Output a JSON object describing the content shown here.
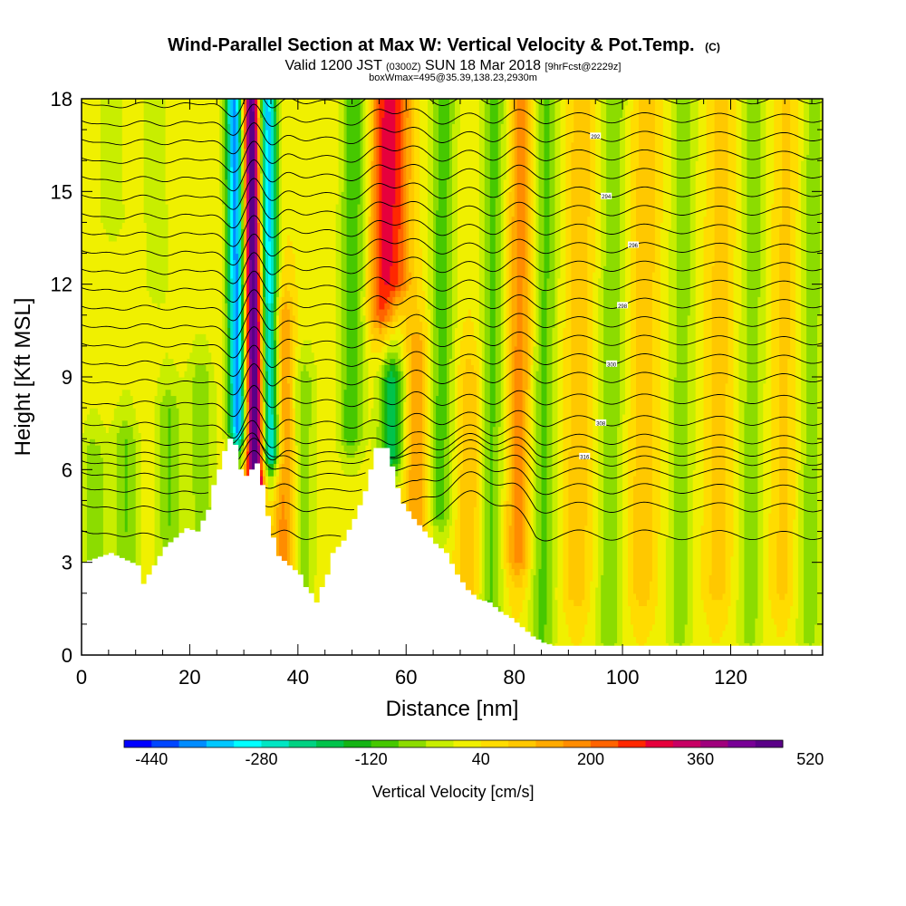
{
  "chart_data": {
    "type": "heatmap",
    "title": "Wind-Parallel Section at Max W: Vertical Velocity & Pot.Temp.",
    "title_mark": "(C)",
    "subtitle_main": "Valid 1200 JST",
    "subtitle_utc": "(0300Z)",
    "subtitle_date": "SUN 18 Mar 2018",
    "subtitle_fcst": "[9hrFcst@2229z]",
    "subtitle2": "boxWmax=495@35.39,138.23,2930m",
    "xlabel": "Distance [nm]",
    "ylabel": "Height [Kft MSL]",
    "xlim": [
      0,
      137
    ],
    "ylim": [
      0,
      18
    ],
    "xticks": [
      "0",
      "20",
      "40",
      "60",
      "80",
      "100",
      "120"
    ],
    "yticks": [
      "0",
      "3",
      "6",
      "9",
      "12",
      "15",
      "18"
    ],
    "colorbar": {
      "label": "Vertical Velocity [cm/s]",
      "min": -480,
      "step": 40,
      "tick_labels": [
        "-440",
        "-280",
        "-120",
        "40",
        "200",
        "360",
        "520"
      ],
      "colors": [
        "#0000ff",
        "#0046ff",
        "#008cff",
        "#00c8ff",
        "#00ffff",
        "#00e6c3",
        "#00d282",
        "#00c34b",
        "#14b414",
        "#46c800",
        "#8cdc00",
        "#c8ee00",
        "#f0f000",
        "#ffdc00",
        "#ffc800",
        "#ffaa00",
        "#ff8c00",
        "#ff6400",
        "#ff2800",
        "#e6003c",
        "#c80064",
        "#a0007d",
        "#780096",
        "#5a0087"
      ]
    },
    "terrain_kft": [
      [
        0,
        3.0
      ],
      [
        5,
        3.3
      ],
      [
        10,
        2.9
      ],
      [
        11,
        2.3
      ],
      [
        13,
        2.9
      ],
      [
        15,
        3.5
      ],
      [
        17,
        3.8
      ],
      [
        19,
        4.1
      ],
      [
        21,
        4.0
      ],
      [
        23,
        4.7
      ],
      [
        24,
        5.5
      ],
      [
        25,
        6.0
      ],
      [
        26,
        6.6
      ],
      [
        27,
        7.0
      ],
      [
        28,
        6.8
      ],
      [
        29,
        6.0
      ],
      [
        30,
        5.8
      ],
      [
        31,
        6.0
      ],
      [
        32,
        6.2
      ],
      [
        33,
        5.5
      ],
      [
        34,
        4.5
      ],
      [
        35,
        3.8
      ],
      [
        36,
        3.2
      ],
      [
        38,
        2.9
      ],
      [
        40,
        2.6
      ],
      [
        41,
        2.2
      ],
      [
        42,
        2.0
      ],
      [
        43,
        1.7
      ],
      [
        44,
        2.2
      ],
      [
        45,
        2.6
      ],
      [
        46,
        3.3
      ],
      [
        48,
        3.7
      ],
      [
        50,
        4.4
      ],
      [
        52,
        5.3
      ],
      [
        54,
        6.7
      ],
      [
        56,
        6.7
      ],
      [
        57,
        6.1
      ],
      [
        58,
        5.4
      ],
      [
        59,
        4.9
      ],
      [
        61,
        4.4
      ],
      [
        63,
        4.0
      ],
      [
        65,
        3.6
      ],
      [
        67,
        3.3
      ],
      [
        69,
        2.6
      ],
      [
        71,
        2.1
      ],
      [
        73,
        1.8
      ],
      [
        75,
        1.7
      ],
      [
        77,
        1.4
      ],
      [
        79,
        1.2
      ],
      [
        81,
        0.9
      ],
      [
        83,
        0.6
      ],
      [
        85,
        0.4
      ],
      [
        87,
        0.3
      ],
      [
        90,
        0.3
      ],
      [
        137,
        0.3
      ]
    ],
    "w_features": [
      {
        "x": 28.8,
        "w": -420,
        "top": 21,
        "bottom": 7.2
      },
      {
        "x": 31.8,
        "w": 480,
        "top": 21,
        "bottom": 5.4
      },
      {
        "x": 34.8,
        "w": -380,
        "top": 21,
        "bottom": 6.4
      },
      {
        "x": 37.0,
        "w": 160,
        "top": 11,
        "bottom": 2.5
      },
      {
        "x": 41.0,
        "w": -100,
        "top": 9,
        "bottom": 2.0
      },
      {
        "x": 50.0,
        "w": -140,
        "top": 21,
        "bottom": 7.0
      },
      {
        "x": 55.5,
        "w": 220,
        "top": 21,
        "bottom": 11.0
      },
      {
        "x": 58.5,
        "w": 170,
        "top": 21,
        "bottom": 12.0
      },
      {
        "x": 57.5,
        "w": -230,
        "top": 9.0,
        "bottom": 6.4
      },
      {
        "x": 62.0,
        "w": 130,
        "top": 10,
        "bottom": 4.0
      },
      {
        "x": 66.5,
        "w": -130,
        "top": 21,
        "bottom": 4.5
      },
      {
        "x": 72.0,
        "w": 90,
        "top": 9,
        "bottom": 2.0
      },
      {
        "x": 76.0,
        "w": -120,
        "top": 21,
        "bottom": 1.0
      },
      {
        "x": 81.0,
        "w": 150,
        "top": 21,
        "bottom": 3.0
      },
      {
        "x": 85.5,
        "w": -120,
        "top": 21,
        "bottom": 0.5
      },
      {
        "x": 92.0,
        "w": 80,
        "top": 21,
        "bottom": 2.0
      },
      {
        "x": 98.0,
        "w": -100,
        "top": 21,
        "bottom": 0.5
      },
      {
        "x": 104.0,
        "w": 80,
        "top": 21,
        "bottom": 2.0
      },
      {
        "x": 111.0,
        "w": -90,
        "top": 21,
        "bottom": 0.5
      },
      {
        "x": 118.0,
        "w": 70,
        "top": 21,
        "bottom": 2.0
      },
      {
        "x": 124.0,
        "w": -90,
        "top": 21,
        "bottom": 0.5
      },
      {
        "x": 130.0,
        "w": 60,
        "top": 21,
        "bottom": 2.0
      },
      {
        "x": 135.0,
        "w": -90,
        "top": 21,
        "bottom": 0.5
      },
      {
        "x": 2.0,
        "w": -100,
        "top": 6.5,
        "bottom": 0.5
      },
      {
        "x": 8.0,
        "w": -110,
        "top": 7.0,
        "bottom": 0.5
      },
      {
        "x": 16.0,
        "w": -110,
        "top": 8.0,
        "bottom": 0.5
      },
      {
        "x": 22.0,
        "w": -100,
        "top": 9.0,
        "bottom": 3.0
      },
      {
        "x": 14.0,
        "w": -60,
        "top": 21,
        "bottom": 12.0
      },
      {
        "x": 6.0,
        "w": -60,
        "top": 21,
        "bottom": 14.0
      }
    ],
    "theta_isentropes_kft": [
      3.9,
      4.8,
      5.4,
      5.9,
      6.3,
      6.6,
      7.0,
      7.6,
      8.3,
      9.0,
      9.6,
      10.2,
      10.8,
      11.4,
      12.0,
      12.6,
      13.2,
      13.8,
      14.4,
      15.0,
      15.6,
      16.2,
      16.8,
      17.4,
      18.0
    ],
    "isentrope_label_x": [
      93,
      96,
      98,
      100,
      102,
      97,
      95
    ],
    "isentrope_label_texts": [
      "316",
      "308",
      "300",
      "298",
      "296",
      "294",
      "292"
    ]
  }
}
